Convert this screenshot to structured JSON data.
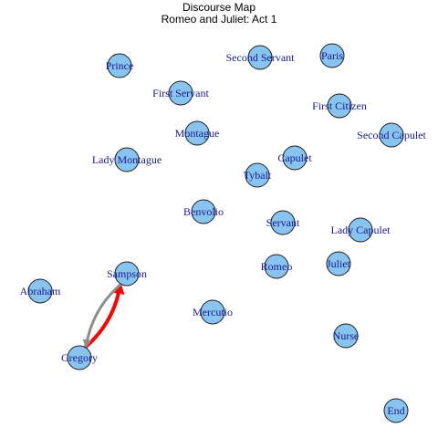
{
  "title": "Discourse Map",
  "subtitle": "Romeo and Juliet: Act 1",
  "colors": {
    "node_fill": "#87c4f0",
    "node_stroke": "#1f1f1f",
    "label": "#1a1a8c",
    "edge_primary": "#ff0000",
    "edge_secondary": "#8c8c8c"
  },
  "nodes": [
    {
      "id": "prince",
      "label": "Prince"
    },
    {
      "id": "second-servant",
      "label": "Second Servant"
    },
    {
      "id": "paris",
      "label": "Paris"
    },
    {
      "id": "first-servant",
      "label": "First Servant"
    },
    {
      "id": "first-citizen",
      "label": "First Citizen"
    },
    {
      "id": "montague",
      "label": "Montague"
    },
    {
      "id": "second-capulet",
      "label": "Second Capulet"
    },
    {
      "id": "lady-montague",
      "label": "Lady Montague"
    },
    {
      "id": "capulet",
      "label": "Capulet"
    },
    {
      "id": "tybalt",
      "label": "Tybalt"
    },
    {
      "id": "benvolio",
      "label": "Benvolio"
    },
    {
      "id": "servant",
      "label": "Servant"
    },
    {
      "id": "lady-capulet",
      "label": "Lady Capulet"
    },
    {
      "id": "romeo",
      "label": "Romeo"
    },
    {
      "id": "juliet",
      "label": "Juliet"
    },
    {
      "id": "abraham",
      "label": "Abraham"
    },
    {
      "id": "sampson",
      "label": "Sampson"
    },
    {
      "id": "mercutio",
      "label": "Mercutio"
    },
    {
      "id": "nurse",
      "label": "Nurse"
    },
    {
      "id": "gregory",
      "label": "Gregory"
    },
    {
      "id": "end",
      "label": "End"
    }
  ],
  "edges": [
    {
      "from": "gregory",
      "to": "sampson",
      "color": "edge_primary",
      "weight": 4
    },
    {
      "from": "sampson",
      "to": "gregory",
      "color": "edge_secondary",
      "weight": 3
    }
  ]
}
